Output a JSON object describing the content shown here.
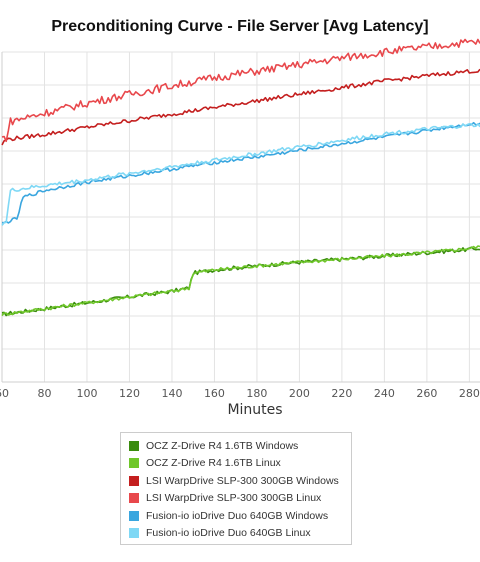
{
  "chart_data": {
    "type": "line",
    "title": "Preconditioning Curve - File Server [Avg Latency]",
    "xlabel": "Minutes",
    "ylabel": "",
    "xlim": [
      60,
      285
    ],
    "ylim": [
      0,
      10
    ],
    "x_ticks": [
      60,
      80,
      100,
      120,
      140,
      160,
      180,
      200,
      220,
      240,
      260,
      280
    ],
    "grid": true,
    "legend_position": "bottom",
    "series": [
      {
        "name": "OCZ Z-Drive R4 1.6TB Windows",
        "color": "#3a8c0e",
        "x": [
          60,
          80,
          100,
          120,
          140,
          148,
          150,
          160,
          180,
          200,
          220,
          240,
          260,
          280,
          285
        ],
        "y": [
          2.05,
          2.22,
          2.4,
          2.58,
          2.75,
          2.85,
          3.3,
          3.4,
          3.52,
          3.63,
          3.72,
          3.82,
          3.92,
          4.02,
          4.05
        ]
      },
      {
        "name": "OCZ Z-Drive R4 1.6TB Linux",
        "color": "#6fc72a",
        "x": [
          60,
          80,
          100,
          120,
          140,
          148,
          150,
          160,
          180,
          200,
          220,
          240,
          260,
          280,
          285
        ],
        "y": [
          2.05,
          2.22,
          2.4,
          2.58,
          2.75,
          2.85,
          3.3,
          3.4,
          3.52,
          3.63,
          3.72,
          3.82,
          3.92,
          4.05,
          4.1
        ]
      },
      {
        "name": "LSI WarpDrive SLP-300 300GB Windows",
        "color": "#c41f1f",
        "x": [
          60,
          62,
          80,
          100,
          120,
          140,
          160,
          180,
          200,
          220,
          240,
          260,
          280,
          285
        ],
        "y": [
          7.2,
          7.35,
          7.5,
          7.72,
          7.92,
          8.12,
          8.32,
          8.52,
          8.72,
          8.92,
          9.12,
          9.28,
          9.42,
          9.42
        ]
      },
      {
        "name": "LSI WarpDrive SLP-300 300GB Linux",
        "color": "#e8484c",
        "x": [
          60,
          62,
          64,
          80,
          100,
          120,
          140,
          160,
          180,
          200,
          220,
          240,
          260,
          280,
          285
        ],
        "y": [
          7.4,
          7.4,
          7.9,
          8.15,
          8.45,
          8.72,
          8.98,
          9.22,
          9.42,
          9.62,
          9.82,
          10.0,
          10.15,
          10.3,
          10.3
        ]
      },
      {
        "name": "Fusion-io ioDrive Duo 640GB Windows",
        "color": "#3aa6df",
        "x": [
          60,
          67,
          70,
          80,
          100,
          120,
          140,
          160,
          180,
          200,
          220,
          240,
          260,
          280,
          285
        ],
        "y": [
          4.8,
          4.95,
          5.6,
          5.8,
          6.05,
          6.25,
          6.45,
          6.65,
          6.82,
          7.02,
          7.22,
          7.42,
          7.62,
          7.82,
          7.82
        ]
      },
      {
        "name": "Fusion-io ioDrive Duo 640GB Linux",
        "color": "#7fd8f5",
        "x": [
          60,
          62,
          64,
          80,
          100,
          120,
          140,
          160,
          180,
          200,
          220,
          240,
          260,
          280,
          285
        ],
        "y": [
          4.8,
          4.85,
          5.8,
          5.95,
          6.12,
          6.32,
          6.52,
          6.72,
          6.92,
          7.12,
          7.32,
          7.52,
          7.66,
          7.78,
          7.78
        ]
      }
    ]
  }
}
